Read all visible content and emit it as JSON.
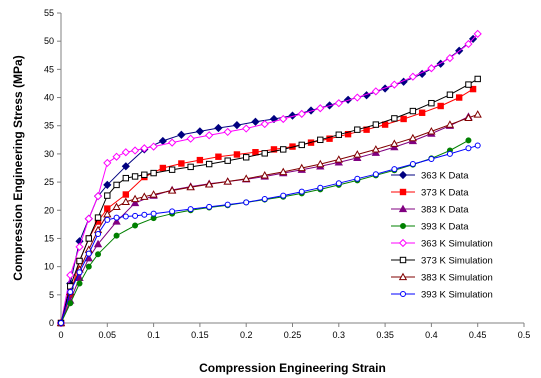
{
  "chart_data": {
    "type": "line",
    "title": "",
    "xlabel": "Compression Engineering Strain",
    "ylabel": "Compression Engineering Stress (MPa)",
    "xlim": [
      0,
      0.5
    ],
    "ylim": [
      0,
      55
    ],
    "xticks": [
      0,
      0.05,
      0.1,
      0.15,
      0.2,
      0.25,
      0.3,
      0.35,
      0.4,
      0.45,
      0.5
    ],
    "xtick_labels": [
      "0",
      "0.05",
      "0.1",
      "0.15",
      "0.2",
      "0.25",
      "0.3",
      "0.35",
      "0.4",
      "0.45",
      "0.5"
    ],
    "yticks": [
      0,
      5,
      10,
      15,
      20,
      25,
      30,
      35,
      40,
      45,
      50,
      55
    ],
    "ytick_labels": [
      "0",
      "5",
      "10",
      "15",
      "20",
      "25",
      "30",
      "35",
      "40",
      "45",
      "50",
      "55"
    ],
    "grid": false,
    "legend_position": "right",
    "series": [
      {
        "name": "363 K  Data",
        "color": "#000080",
        "marker": "diamond",
        "filled": true,
        "x": [
          0,
          0.01,
          0.02,
          0.03,
          0.04,
          0.05,
          0.07,
          0.09,
          0.11,
          0.13,
          0.15,
          0.17,
          0.19,
          0.21,
          0.23,
          0.25,
          0.27,
          0.29,
          0.31,
          0.33,
          0.35,
          0.37,
          0.39,
          0.41,
          0.43,
          0.445
        ],
        "y": [
          0,
          7,
          14.5,
          18.5,
          22.5,
          24.5,
          27.8,
          30.8,
          32.3,
          33.4,
          34.0,
          34.6,
          35.1,
          35.7,
          36.2,
          36.8,
          37.7,
          38.6,
          39.6,
          40.4,
          41.6,
          42.8,
          44.2,
          46.0,
          48.3,
          50.4
        ]
      },
      {
        "name": "373 K  Data",
        "color": "#ff0000",
        "marker": "square",
        "filled": true,
        "x": [
          0,
          0.01,
          0.02,
          0.03,
          0.04,
          0.05,
          0.07,
          0.09,
          0.11,
          0.13,
          0.15,
          0.17,
          0.19,
          0.21,
          0.23,
          0.25,
          0.27,
          0.29,
          0.31,
          0.33,
          0.35,
          0.37,
          0.39,
          0.41,
          0.43,
          0.445
        ],
        "y": [
          0,
          5,
          11,
          15,
          18,
          20.3,
          22.8,
          25.9,
          27.5,
          28.3,
          28.9,
          29.5,
          29.9,
          30.3,
          30.8,
          31.3,
          32.0,
          32.7,
          33.5,
          34.3,
          35.2,
          36.2,
          37.3,
          38.5,
          40.0,
          41.5
        ]
      },
      {
        "name": "383 K  Data",
        "color": "#800080",
        "marker": "triangle",
        "filled": true,
        "x": [
          0,
          0.01,
          0.02,
          0.03,
          0.04,
          0.06,
          0.08,
          0.1,
          0.12,
          0.14,
          0.16,
          0.18,
          0.2,
          0.22,
          0.24,
          0.26,
          0.28,
          0.3,
          0.32,
          0.34,
          0.36,
          0.38,
          0.4,
          0.42,
          0.44
        ],
        "y": [
          0,
          4,
          8,
          11.5,
          14,
          18,
          21.3,
          22.6,
          23.6,
          24.2,
          24.7,
          25.1,
          25.5,
          26.0,
          26.6,
          27.2,
          27.8,
          28.5,
          29.3,
          30.2,
          31.2,
          32.3,
          33.6,
          35.0,
          36.6
        ]
      },
      {
        "name": "393 K  Data",
        "color": "#008000",
        "marker": "circle",
        "filled": true,
        "x": [
          0,
          0.01,
          0.02,
          0.03,
          0.04,
          0.06,
          0.08,
          0.1,
          0.12,
          0.14,
          0.16,
          0.18,
          0.2,
          0.22,
          0.24,
          0.26,
          0.28,
          0.3,
          0.32,
          0.34,
          0.36,
          0.38,
          0.4,
          0.42,
          0.44
        ],
        "y": [
          0,
          3.5,
          7,
          10,
          12.2,
          15.5,
          17.3,
          18.6,
          19.4,
          20.0,
          20.5,
          20.9,
          21.4,
          21.9,
          22.4,
          23.0,
          23.7,
          24.5,
          25.3,
          26.2,
          27.1,
          28.1,
          29.2,
          30.6,
          32.4
        ]
      },
      {
        "name": "363 K  Simulation",
        "color": "#ff00ff",
        "marker": "diamond",
        "filled": false,
        "x": [
          0,
          0.01,
          0.02,
          0.03,
          0.04,
          0.05,
          0.06,
          0.07,
          0.08,
          0.09,
          0.1,
          0.12,
          0.14,
          0.16,
          0.18,
          0.2,
          0.22,
          0.24,
          0.26,
          0.28,
          0.3,
          0.32,
          0.34,
          0.36,
          0.38,
          0.4,
          0.42,
          0.44,
          0.45
        ],
        "y": [
          0,
          8.5,
          13.5,
          18.5,
          22.5,
          28.4,
          29.5,
          30.3,
          30.6,
          31.0,
          31.3,
          32.0,
          32.7,
          33.3,
          33.9,
          34.5,
          35.3,
          36.2,
          37.1,
          38.1,
          39.0,
          40.0,
          41.1,
          42.3,
          43.7,
          45.2,
          47.0,
          49.5,
          51.3
        ]
      },
      {
        "name": "373 K  Simulation",
        "color": "#000000",
        "marker": "square",
        "filled": false,
        "x": [
          0,
          0.01,
          0.02,
          0.03,
          0.04,
          0.05,
          0.06,
          0.07,
          0.08,
          0.09,
          0.1,
          0.12,
          0.14,
          0.16,
          0.18,
          0.2,
          0.22,
          0.24,
          0.26,
          0.28,
          0.3,
          0.32,
          0.34,
          0.36,
          0.38,
          0.4,
          0.42,
          0.44,
          0.45
        ],
        "y": [
          0,
          6.5,
          11,
          15,
          18.7,
          22.6,
          24.5,
          25.7,
          26.0,
          26.3,
          26.6,
          27.2,
          27.7,
          28.2,
          28.8,
          29.4,
          30.1,
          30.8,
          31.6,
          32.5,
          33.4,
          34.3,
          35.2,
          36.3,
          37.6,
          39.0,
          40.5,
          42.3,
          43.3
        ]
      },
      {
        "name": "383 K  Simulation",
        "color": "#800000",
        "marker": "triangle",
        "filled": false,
        "x": [
          0,
          0.01,
          0.02,
          0.03,
          0.04,
          0.05,
          0.06,
          0.07,
          0.08,
          0.09,
          0.1,
          0.12,
          0.14,
          0.16,
          0.18,
          0.2,
          0.22,
          0.24,
          0.26,
          0.28,
          0.3,
          0.32,
          0.34,
          0.36,
          0.38,
          0.4,
          0.42,
          0.44,
          0.45
        ],
        "y": [
          0,
          5.5,
          9.5,
          13,
          16.5,
          19.3,
          20.6,
          21.5,
          22.0,
          22.4,
          22.8,
          23.5,
          24.1,
          24.6,
          25.1,
          25.6,
          26.2,
          26.8,
          27.5,
          28.2,
          29.0,
          29.9,
          30.8,
          31.8,
          32.8,
          34.0,
          35.2,
          36.4,
          37.0
        ]
      },
      {
        "name": "393 K  Simulation",
        "color": "#0000ff",
        "marker": "circle",
        "filled": false,
        "x": [
          0,
          0.01,
          0.02,
          0.03,
          0.04,
          0.05,
          0.06,
          0.07,
          0.08,
          0.09,
          0.1,
          0.12,
          0.14,
          0.16,
          0.18,
          0.2,
          0.22,
          0.24,
          0.26,
          0.28,
          0.3,
          0.32,
          0.34,
          0.36,
          0.38,
          0.4,
          0.42,
          0.44,
          0.45
        ],
        "y": [
          0,
          5.5,
          9,
          12.3,
          15.8,
          18.3,
          18.7,
          18.9,
          19.0,
          19.2,
          19.4,
          19.8,
          20.2,
          20.6,
          21.0,
          21.4,
          22.0,
          22.6,
          23.3,
          24.0,
          24.8,
          25.6,
          26.4,
          27.3,
          28.2,
          29.1,
          30.0,
          31.0,
          31.5
        ]
      }
    ]
  }
}
